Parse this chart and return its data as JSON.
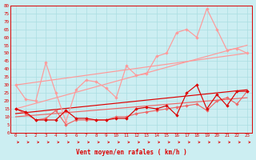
{
  "bg_color": "#cceef2",
  "grid_color": "#aadde2",
  "dark_red": "#dd0000",
  "light_red": "#ff9999",
  "medium_red": "#ee6666",
  "xlabel": "Vent moyen/en rafales ( km/h )",
  "xlim": [
    -0.5,
    23.5
  ],
  "ylim": [
    0,
    80
  ],
  "yticks": [
    0,
    5,
    10,
    15,
    20,
    25,
    30,
    35,
    40,
    45,
    50,
    55,
    60,
    65,
    70,
    75,
    80
  ],
  "xticks": [
    0,
    1,
    2,
    3,
    4,
    5,
    6,
    7,
    8,
    9,
    10,
    11,
    12,
    13,
    14,
    15,
    16,
    17,
    18,
    19,
    20,
    21,
    22,
    23
  ],
  "x": [
    0,
    1,
    2,
    3,
    4,
    5,
    6,
    7,
    8,
    9,
    10,
    11,
    12,
    13,
    14,
    15,
    16,
    17,
    18,
    19,
    20,
    21,
    22,
    23
  ],
  "light_jagged": [
    30,
    21,
    20,
    44,
    25,
    7,
    27,
    33,
    32,
    28,
    22,
    42,
    36,
    37,
    48,
    50,
    63,
    65,
    60,
    78,
    65,
    52,
    53,
    50
  ],
  "light_trend_x": [
    0,
    23
  ],
  "light_trend_y": [
    15,
    55
  ],
  "light_trend2_x": [
    0,
    23
  ],
  "light_trend2_y": [
    30,
    50
  ],
  "dark_jagged": [
    15,
    13,
    8,
    8,
    8,
    14,
    9,
    9,
    8,
    8,
    9,
    9,
    15,
    16,
    15,
    17,
    11,
    25,
    30,
    15,
    24,
    17,
    26,
    26
  ],
  "dark_trend_x": [
    0,
    23
  ],
  "dark_trend_y": [
    12,
    27
  ],
  "dark_jagged2": [
    15,
    12,
    8,
    9,
    14,
    5,
    8,
    8,
    8,
    8,
    10,
    10,
    12,
    13,
    14,
    15,
    16,
    17,
    18,
    14,
    20,
    22,
    18,
    26
  ],
  "dark_trend2_x": [
    0,
    23
  ],
  "dark_trend2_y": [
    10,
    22
  ]
}
